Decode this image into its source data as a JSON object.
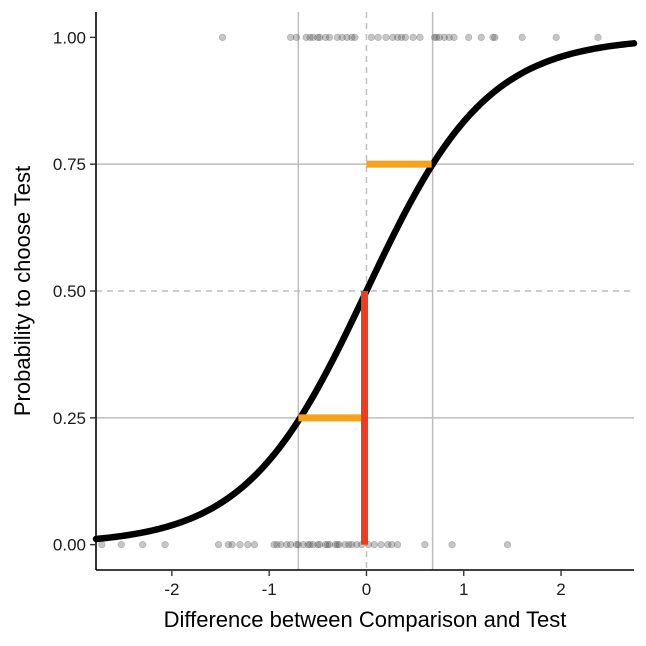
{
  "chart_data": {
    "type": "scatter",
    "xlabel": "Difference between Comparison and Test",
    "ylabel": "Probability to choose Test",
    "xlim": [
      -2.78,
      2.75
    ],
    "ylim": [
      -0.05,
      1.05
    ],
    "x_ticks": [
      {
        "value": -2,
        "label": "-2"
      },
      {
        "value": -1,
        "label": "-1"
      },
      {
        "value": 0,
        "label": "0"
      },
      {
        "value": 1,
        "label": "1"
      },
      {
        "value": 2,
        "label": "2"
      }
    ],
    "y_ticks": [
      {
        "value": 0,
        "label": "0.00"
      },
      {
        "value": 0.25,
        "label": "0.25"
      },
      {
        "value": 0.5,
        "label": "0.50"
      },
      {
        "value": 0.75,
        "label": "0.75"
      },
      {
        "value": 1,
        "label": "1.00"
      }
    ],
    "grid": false,
    "curve": {
      "type": "logistic",
      "location": 0.0,
      "scale": 0.62
    },
    "reference_lines": {
      "horizontal_solid": [
        0.25,
        0.75
      ],
      "horizontal_dashed": [
        0.5
      ],
      "vertical_solid": [
        -0.7,
        0.68
      ],
      "vertical_dashed": [
        0
      ]
    },
    "segments": [
      {
        "role": "jnd-lower",
        "x1": -0.7,
        "x2": -0.04,
        "y": 0.25,
        "color": "#f5a31a"
      },
      {
        "role": "jnd-upper",
        "x1": 0.0,
        "x2": 0.67,
        "y": 0.75,
        "color": "#f5a31a"
      },
      {
        "role": "pse",
        "x": -0.02,
        "y1": 0.0,
        "y2": 0.5,
        "color": "#f03c1e"
      }
    ],
    "series": [
      {
        "y": 1,
        "x": [
          -1.48,
          -0.78,
          -0.72,
          -0.62,
          -0.58,
          -0.55,
          -0.5,
          -0.48,
          -0.42,
          -0.38,
          -0.3,
          -0.25,
          -0.2,
          -0.15,
          -0.12,
          0.05,
          0.12,
          0.2,
          0.27,
          0.32,
          0.36,
          0.4,
          0.48,
          0.55,
          0.7,
          0.72,
          0.75,
          0.8,
          0.85,
          0.9,
          1.05,
          1.18,
          1.3,
          1.32,
          1.6,
          1.95,
          2.38
        ]
      },
      {
        "y": 0,
        "x": [
          -2.72,
          -2.52,
          -2.3,
          -2.07,
          -1.52,
          -1.42,
          -1.38,
          -1.3,
          -1.22,
          -1.15,
          -0.95,
          -0.92,
          -0.88,
          -0.82,
          -0.78,
          -0.72,
          -0.7,
          -0.65,
          -0.6,
          -0.58,
          -0.55,
          -0.5,
          -0.48,
          -0.42,
          -0.4,
          -0.38,
          -0.32,
          -0.3,
          -0.28,
          -0.22,
          -0.18,
          -0.15,
          -0.1,
          -0.05,
          0.02,
          0.08,
          0.15,
          0.22,
          0.26,
          0.32,
          0.6,
          0.88,
          1.45
        ]
      }
    ]
  }
}
